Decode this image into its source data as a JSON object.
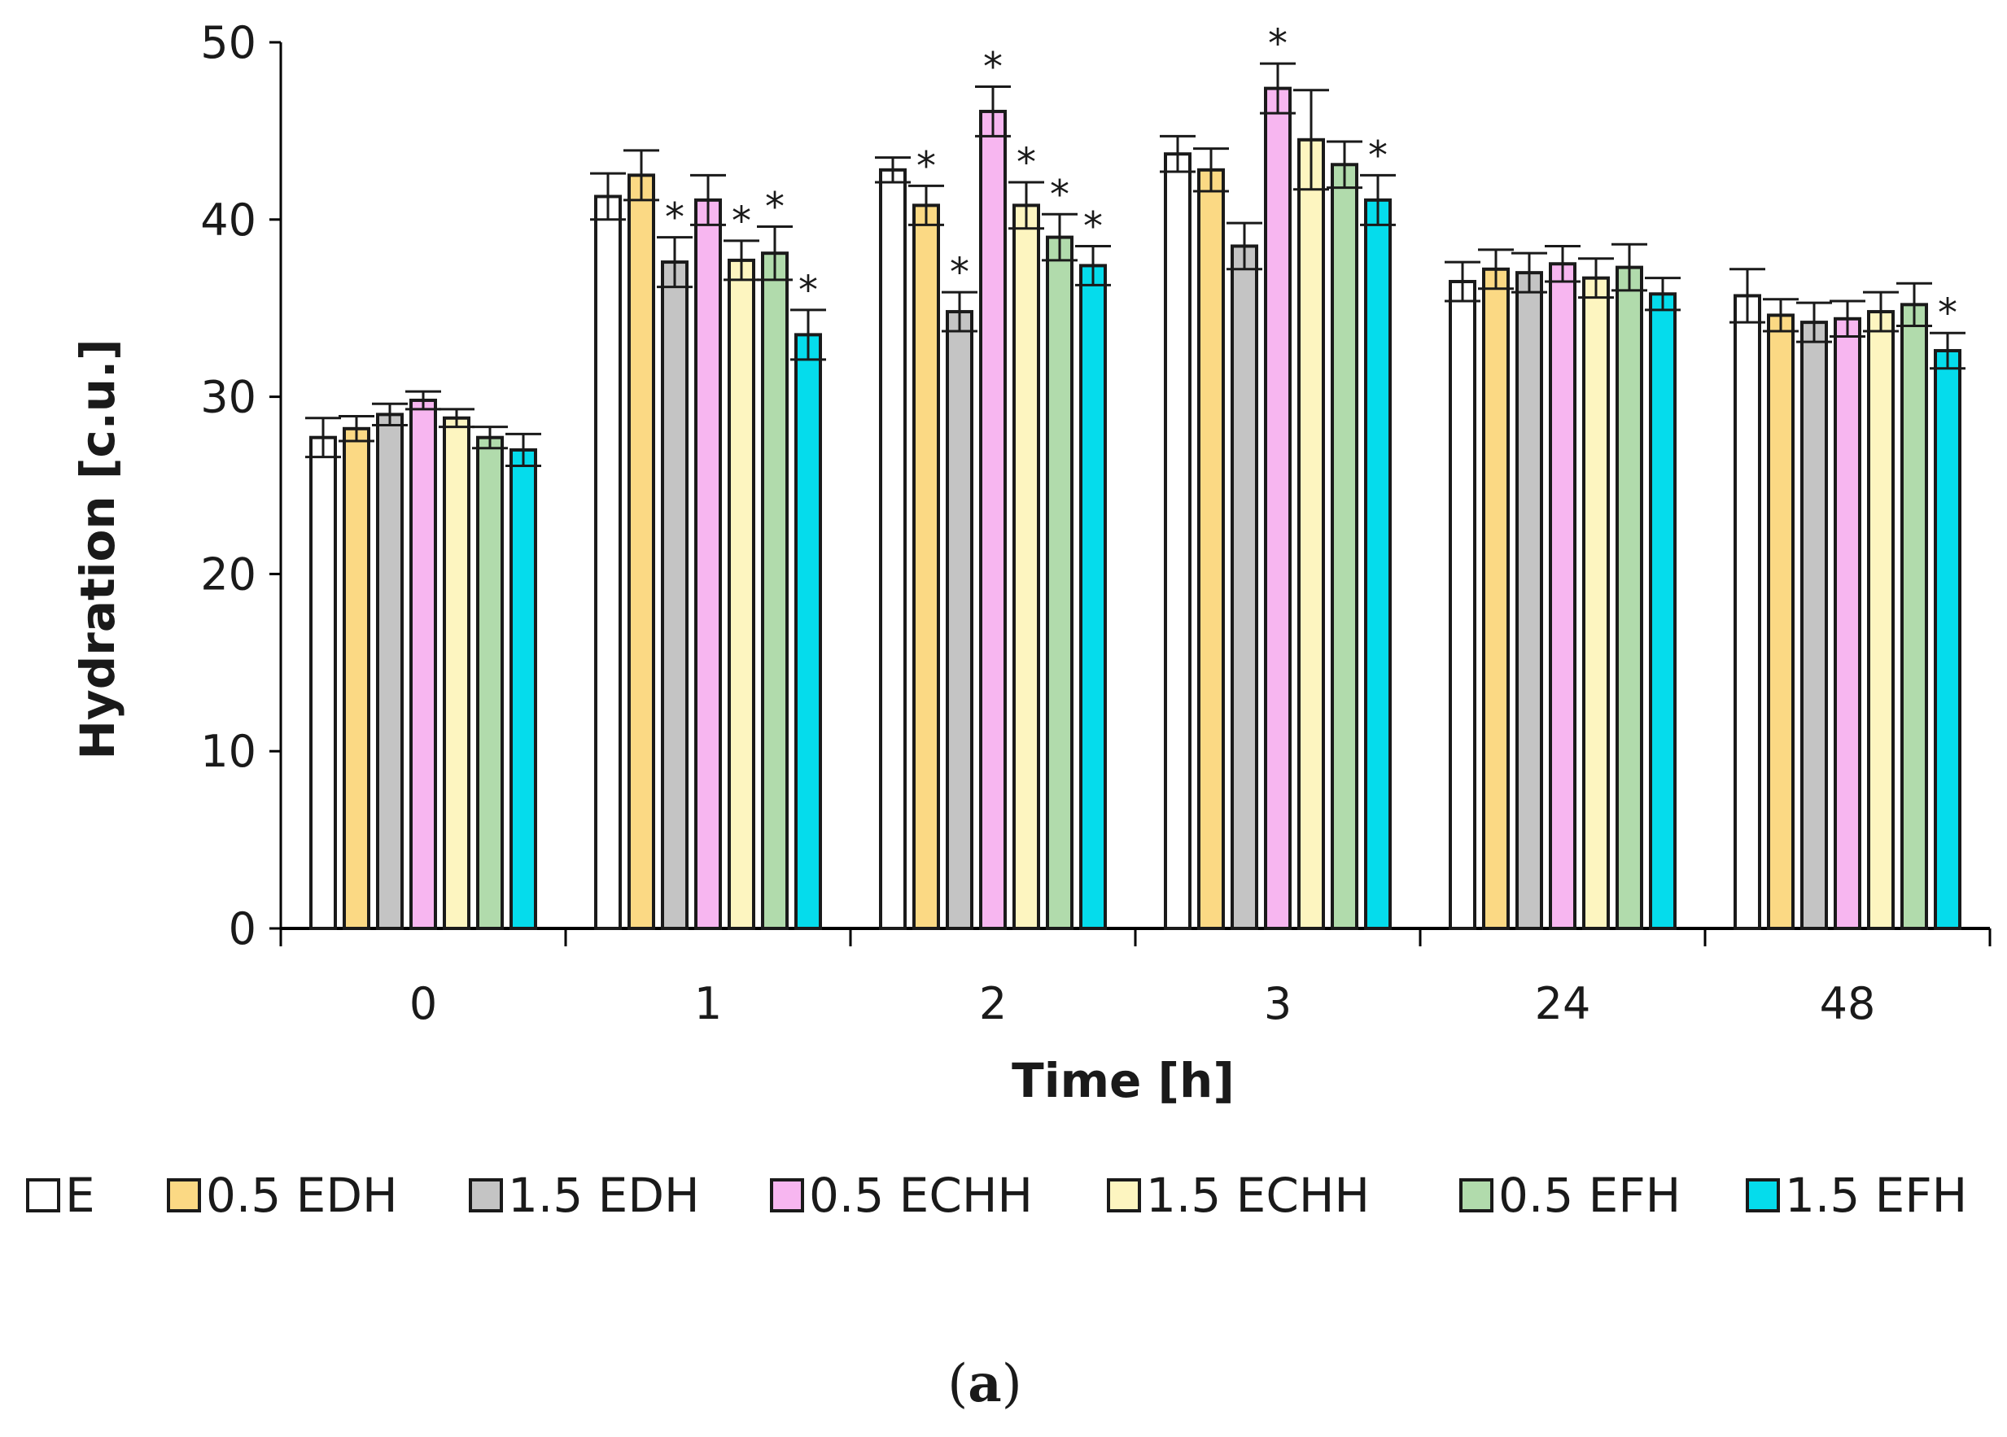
{
  "chart_data": {
    "type": "bar",
    "title": "",
    "xlabel": "Time [h]",
    "ylabel": "Hydration [c.u.]",
    "ylim": [
      0,
      50
    ],
    "yticks": [
      0,
      10,
      20,
      30,
      40,
      50
    ],
    "categories": [
      "0",
      "1",
      "2",
      "3",
      "24",
      "48"
    ],
    "series": [
      {
        "name": "E",
        "color": "#ffffff",
        "values": [
          27.7,
          41.3,
          42.8,
          43.7,
          36.5,
          35.7
        ],
        "errors": [
          1.1,
          1.3,
          0.7,
          1.0,
          1.1,
          1.5
        ],
        "significant": [
          false,
          false,
          false,
          false,
          false,
          false
        ]
      },
      {
        "name": "0.5 EDH",
        "color": "#fbd984",
        "values": [
          28.2,
          42.5,
          40.8,
          42.8,
          37.2,
          34.6
        ],
        "errors": [
          0.7,
          1.4,
          1.1,
          1.2,
          1.1,
          0.9
        ],
        "significant": [
          false,
          false,
          true,
          false,
          false,
          false
        ]
      },
      {
        "name": "1.5 EDH",
        "color": "#c4c4c4",
        "values": [
          29.0,
          37.6,
          34.8,
          38.5,
          37.0,
          34.2
        ],
        "errors": [
          0.6,
          1.4,
          1.1,
          1.3,
          1.1,
          1.1
        ],
        "significant": [
          false,
          true,
          true,
          false,
          false,
          false
        ]
      },
      {
        "name": "0.5 ECHH",
        "color": "#f7b6f0",
        "values": [
          29.8,
          41.1,
          46.1,
          47.4,
          37.5,
          34.4
        ],
        "errors": [
          0.5,
          1.4,
          1.4,
          1.4,
          1.0,
          1.0
        ],
        "significant": [
          false,
          false,
          true,
          true,
          false,
          false
        ]
      },
      {
        "name": "1.5 ECHH",
        "color": "#fdf5c0",
        "values": [
          28.8,
          37.7,
          40.8,
          44.5,
          36.7,
          34.8
        ],
        "errors": [
          0.5,
          1.1,
          1.3,
          2.8,
          1.1,
          1.1
        ],
        "significant": [
          false,
          true,
          true,
          false,
          false,
          false
        ]
      },
      {
        "name": "0.5 EFH",
        "color": "#b1dbac",
        "values": [
          27.7,
          38.1,
          39.0,
          43.1,
          37.3,
          35.2
        ],
        "errors": [
          0.6,
          1.5,
          1.3,
          1.3,
          1.3,
          1.2
        ],
        "significant": [
          false,
          true,
          true,
          false,
          false,
          false
        ]
      },
      {
        "name": "1.5 EFH",
        "color": "#05dcec",
        "values": [
          27.0,
          33.5,
          37.4,
          41.1,
          35.8,
          32.6
        ],
        "errors": [
          0.9,
          1.4,
          1.1,
          1.4,
          0.9,
          1.0
        ],
        "significant": [
          false,
          true,
          true,
          true,
          false,
          true
        ]
      }
    ],
    "significance_marker": "*",
    "legend_position": "bottom"
  },
  "panel_label": {
    "open": "(",
    "letter": "a",
    "close": ")"
  }
}
